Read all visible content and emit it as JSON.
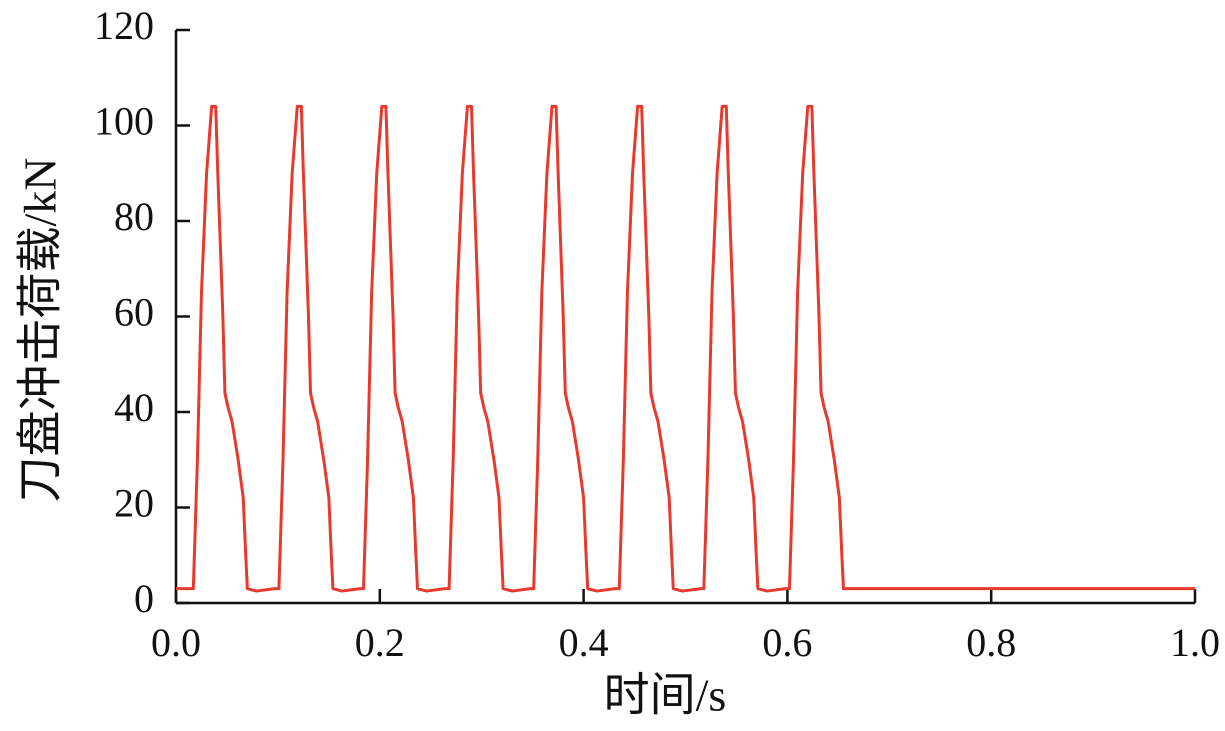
{
  "chart_data": {
    "type": "line",
    "xlabel": "时间/s",
    "ylabel": "刀盘冲击荷载/kN",
    "xlim": [
      0,
      1
    ],
    "ylim": [
      0,
      120
    ],
    "xticks": [
      {
        "value": 0,
        "label": "0.0"
      },
      0.2,
      0.4,
      0.6,
      0.8,
      {
        "value": 1,
        "label": "1.0"
      }
    ],
    "yticks": [
      0,
      20,
      40,
      60,
      80,
      100,
      120
    ],
    "grid": false,
    "series": [
      {
        "color": "#e8392e",
        "x": [
          0,
          0.017,
          0.021,
          0.025,
          0.03,
          0.035,
          0.039,
          0.041,
          0.046,
          0.048,
          0.051,
          0.055,
          0.061,
          0.066,
          0.068,
          0.07,
          0.079,
          0.097,
          0.101,
          0.105,
          0.109,
          0.114,
          0.119,
          0.123,
          0.125,
          0.13,
          0.132,
          0.135,
          0.139,
          0.145,
          0.15,
          0.152,
          0.154,
          0.163,
          0.181,
          0.184,
          0.188,
          0.192,
          0.197,
          0.202,
          0.206,
          0.208,
          0.213,
          0.215,
          0.218,
          0.222,
          0.228,
          0.233,
          0.235,
          0.237,
          0.246,
          0.264,
          0.268,
          0.272,
          0.276,
          0.281,
          0.286,
          0.29,
          0.292,
          0.297,
          0.299,
          0.302,
          0.306,
          0.312,
          0.317,
          0.319,
          0.321,
          0.33,
          0.348,
          0.351,
          0.355,
          0.359,
          0.364,
          0.369,
          0.373,
          0.375,
          0.38,
          0.382,
          0.385,
          0.389,
          0.395,
          0.4,
          0.402,
          0.404,
          0.413,
          0.431,
          0.435,
          0.439,
          0.443,
          0.448,
          0.453,
          0.457,
          0.459,
          0.464,
          0.466,
          0.469,
          0.473,
          0.479,
          0.484,
          0.486,
          0.488,
          0.497,
          0.515,
          0.518,
          0.522,
          0.526,
          0.531,
          0.536,
          0.54,
          0.542,
          0.547,
          0.549,
          0.552,
          0.556,
          0.562,
          0.567,
          0.569,
          0.571,
          0.58,
          0.598,
          0.602,
          0.606,
          0.61,
          0.615,
          0.62,
          0.624,
          0.626,
          0.631,
          0.633,
          0.636,
          0.64,
          0.646,
          0.651,
          0.653,
          0.655,
          0.66,
          0.8,
          1.0
        ],
        "values": [
          3,
          3,
          30,
          65,
          90,
          104,
          104,
          90,
          60,
          44,
          41,
          38,
          30,
          22,
          12,
          3,
          2.5,
          3,
          3,
          30,
          65,
          90,
          104,
          104,
          90,
          60,
          44,
          41,
          38,
          30,
          22,
          12,
          3,
          2.5,
          3,
          3,
          30,
          65,
          90,
          104,
          104,
          90,
          60,
          44,
          41,
          38,
          30,
          22,
          12,
          3,
          2.5,
          3,
          3,
          30,
          65,
          90,
          104,
          104,
          90,
          60,
          44,
          41,
          38,
          30,
          22,
          12,
          3,
          2.5,
          3,
          3,
          30,
          65,
          90,
          104,
          104,
          90,
          60,
          44,
          41,
          38,
          30,
          22,
          12,
          3,
          2.5,
          3,
          3,
          30,
          65,
          90,
          104,
          104,
          90,
          60,
          44,
          41,
          38,
          30,
          22,
          12,
          3,
          2.5,
          3,
          3,
          30,
          65,
          90,
          104,
          104,
          90,
          60,
          44,
          41,
          38,
          30,
          22,
          12,
          3,
          2.5,
          3,
          3,
          30,
          65,
          90,
          104,
          104,
          90,
          60,
          44,
          41,
          38,
          30,
          22,
          12,
          3,
          3,
          3,
          3
        ]
      }
    ]
  }
}
